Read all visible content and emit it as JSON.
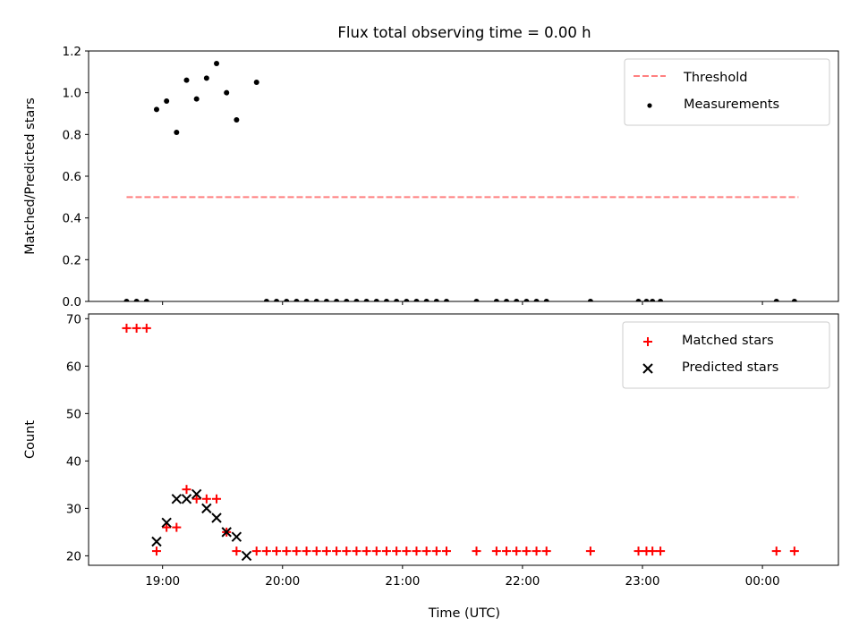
{
  "chart_data": {
    "type": "scatter",
    "title": "Flux total observing time = 0.00 h",
    "x_unit": "UTC",
    "xlabel": "Time (UTC)",
    "xticks": [
      "19:00",
      "20:00",
      "21:00",
      "22:00",
      "23:00",
      "00:00"
    ],
    "xlim": [
      "18:23",
      "00:38"
    ],
    "colors": {
      "threshold": "#ff7f7f",
      "measurements": "#000000",
      "matched": "#ff0000",
      "predicted": "#000000"
    },
    "panels": [
      {
        "ylabel": "Matched/Predicted stars",
        "ylim": [
          0,
          1.2
        ],
        "yticks": [
          "0.0",
          "0.2",
          "0.4",
          "0.6",
          "0.8",
          "1.0",
          "1.2"
        ],
        "legend_position": "top-right",
        "threshold": {
          "name": "Threshold",
          "value": 0.5,
          "x_start": "18:42",
          "x_end": "00:18"
        },
        "series": [
          {
            "name": "Measurements",
            "x": [
              "18:42",
              "18:47",
              "18:52",
              "18:57",
              "19:02",
              "19:07",
              "19:12",
              "19:17",
              "19:22",
              "19:27",
              "19:32",
              "19:37",
              "19:47",
              "19:52",
              "19:57",
              "20:02",
              "20:07",
              "20:12",
              "20:17",
              "20:22",
              "20:27",
              "20:32",
              "20:37",
              "20:42",
              "20:47",
              "20:52",
              "20:57",
              "21:02",
              "21:07",
              "21:12",
              "21:17",
              "21:22",
              "21:37",
              "21:47",
              "21:52",
              "21:57",
              "22:02",
              "22:07",
              "22:12",
              "22:34",
              "22:58",
              "23:02",
              "23:05",
              "23:09",
              "00:07",
              "00:16"
            ],
            "y": [
              0,
              0,
              0,
              0.92,
              0.96,
              0.81,
              1.06,
              0.97,
              1.07,
              1.14,
              1.0,
              0.87,
              1.05,
              0,
              0,
              0,
              0,
              0,
              0,
              0,
              0,
              0,
              0,
              0,
              0,
              0,
              0,
              0,
              0,
              0,
              0,
              0,
              0,
              0,
              0,
              0,
              0,
              0,
              0,
              0,
              0,
              0,
              0,
              0,
              0,
              0
            ]
          }
        ]
      },
      {
        "ylabel": "Count",
        "ylim": [
          18,
          71
        ],
        "yticks": [
          "20",
          "30",
          "40",
          "50",
          "60",
          "70"
        ],
        "legend_position": "top-right",
        "series": [
          {
            "name": "Matched stars",
            "marker": "plus",
            "x": [
              "18:42",
              "18:47",
              "18:52",
              "18:57",
              "19:02",
              "19:07",
              "19:12",
              "19:17",
              "19:22",
              "19:27",
              "19:32",
              "19:37",
              "19:47",
              "19:52",
              "19:57",
              "20:02",
              "20:07",
              "20:12",
              "20:17",
              "20:22",
              "20:27",
              "20:32",
              "20:37",
              "20:42",
              "20:47",
              "20:52",
              "20:57",
              "21:02",
              "21:07",
              "21:12",
              "21:17",
              "21:22",
              "21:37",
              "21:47",
              "21:52",
              "21:57",
              "22:02",
              "22:07",
              "22:12",
              "22:34",
              "22:58",
              "23:02",
              "23:05",
              "23:09",
              "00:07",
              "00:16"
            ],
            "y": [
              68,
              68,
              68,
              21,
              26,
              26,
              34,
              32,
              32,
              32,
              25,
              21,
              21,
              21,
              21,
              21,
              21,
              21,
              21,
              21,
              21,
              21,
              21,
              21,
              21,
              21,
              21,
              21,
              21,
              21,
              21,
              21,
              21,
              21,
              21,
              21,
              21,
              21,
              21,
              21,
              21,
              21,
              21,
              21,
              21,
              21
            ]
          },
          {
            "name": "Predicted stars",
            "marker": "x",
            "x": [
              "18:57",
              "19:02",
              "19:07",
              "19:12",
              "19:17",
              "19:22",
              "19:27",
              "19:32",
              "19:37",
              "19:42"
            ],
            "y": [
              23,
              27,
              32,
              32,
              33,
              30,
              28,
              25,
              24,
              20
            ]
          }
        ]
      }
    ]
  }
}
